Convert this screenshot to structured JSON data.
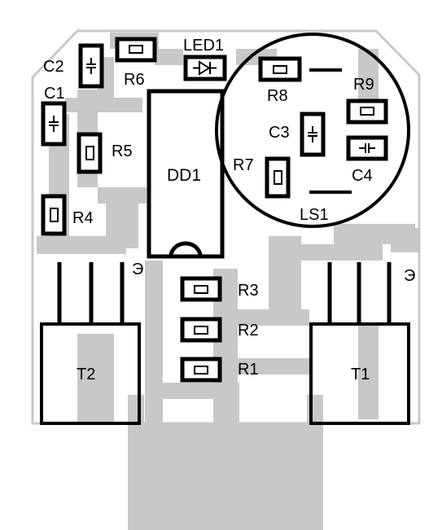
{
  "board": {
    "components": {
      "c1": "C1",
      "c2": "C2",
      "c3": "C3",
      "c4": "C4",
      "r1": "R1",
      "r2": "R2",
      "r3": "R3",
      "r4": "R4",
      "r5": "R5",
      "r6": "R6",
      "r7": "R7",
      "r8": "R8",
      "r9": "R9",
      "led1": "LED1",
      "dd1": "DD1",
      "ls1": "LS1",
      "t1": "T1",
      "t2": "T2",
      "emitter_mark": "Э"
    },
    "colors": {
      "copper": "#c8c8c8",
      "outline": "#000000",
      "background": "#ffffff"
    }
  }
}
